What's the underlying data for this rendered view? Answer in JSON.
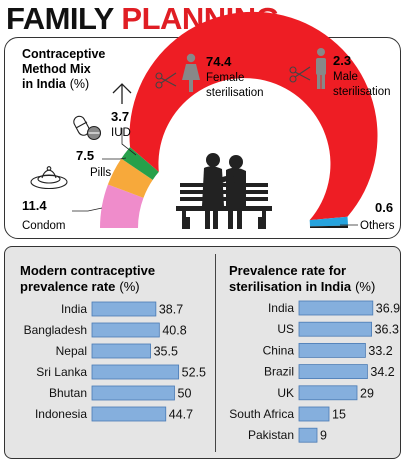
{
  "title": {
    "word1": "FAMILY",
    "word2": "PLANNING"
  },
  "colors": {
    "accent": "#e01e24",
    "bar": "#85afdd",
    "bar_stroke": "#4a7bb5"
  },
  "chart_data": [
    {
      "type": "pie",
      "title": "Contraceptive Method Mix in India",
      "unit": "(%)",
      "slices": [
        {
          "label": "Condom",
          "value": 11.4,
          "color": "#ef8ccb"
        },
        {
          "label": "Pills",
          "value": 7.5,
          "color": "#f7a93b"
        },
        {
          "label": "IUD",
          "value": 3.7,
          "color": "#27a04a"
        },
        {
          "label": "Female sterilisation",
          "value": 74.4,
          "color": "#ee1d24"
        },
        {
          "label": "Male sterilisation",
          "value": 2.3,
          "color": "#27a3dd"
        },
        {
          "label": "Others",
          "value": 0.6,
          "color": "#1a1a1a"
        }
      ],
      "title_lines": [
        "Contraceptive",
        "Method Mix",
        "in India"
      ]
    },
    {
      "type": "bar",
      "title": "Modern contraceptive prevalence rate",
      "title_lines": [
        "Modern contraceptive",
        "prevalence rate"
      ],
      "unit": "(%)",
      "categories": [
        "India",
        "Bangladesh",
        "Nepal",
        "Sri Lanka",
        "Bhutan",
        "Indonesia"
      ],
      "values": [
        38.7,
        40.8,
        35.5,
        52.5,
        50,
        44.7
      ],
      "value_labels": [
        "38.7",
        "40.8",
        "35.5",
        "52.5",
        "50",
        "44.7"
      ]
    },
    {
      "type": "bar",
      "title": "Prevalence rate for sterilisation in India",
      "title_lines": [
        "Prevalence rate for",
        "sterilisation in India"
      ],
      "unit": "(%)",
      "categories": [
        "India",
        "US",
        "China",
        "Brazil",
        "UK",
        "South Africa",
        "Pakistan"
      ],
      "values": [
        36.9,
        36.3,
        33.2,
        34.2,
        29,
        15,
        9
      ],
      "value_labels": [
        "36.9",
        "36.3",
        "33.2",
        "34.2",
        "29",
        "15",
        "9"
      ]
    }
  ],
  "donut_labels": {
    "condom": {
      "value": "11.4",
      "name": "Condom"
    },
    "pills": {
      "value": "7.5",
      "name": "Pills"
    },
    "iud": {
      "value": "3.7",
      "name": "IUD"
    },
    "female": {
      "value": "74.4",
      "name1": "Female",
      "name2": "sterilisation"
    },
    "male": {
      "value": "2.3",
      "name1": "Male",
      "name2": "sterilisation"
    },
    "others": {
      "value": "0.6",
      "name": "Others"
    }
  },
  "icons": [
    "condom-icon",
    "pills-icon",
    "iud-icon",
    "female-sterilisation-icon",
    "male-sterilisation-icon",
    "couple-on-bench-icon"
  ]
}
